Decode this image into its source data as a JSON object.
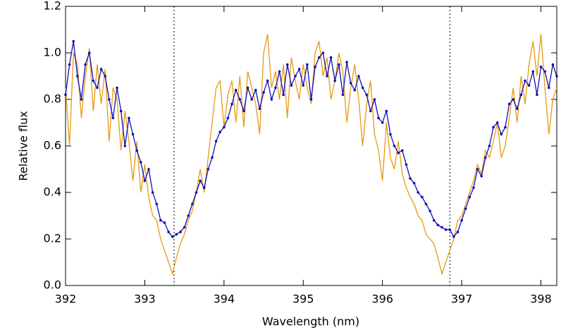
{
  "chart_data": {
    "type": "line",
    "xlabel": "Wavelength (nm)",
    "ylabel": "Relative flux",
    "x": [
      392.0,
      392.05,
      392.1,
      392.15,
      392.2,
      392.25,
      392.3,
      392.35,
      392.4,
      392.45,
      392.5,
      392.55,
      392.6,
      392.65,
      392.7,
      392.75,
      392.8,
      392.85,
      392.9,
      392.95,
      393.0,
      393.05,
      393.1,
      393.15,
      393.2,
      393.25,
      393.3,
      393.35,
      393.4,
      393.45,
      393.5,
      393.55,
      393.6,
      393.65,
      393.7,
      393.75,
      393.8,
      393.85,
      393.9,
      393.95,
      394.0,
      394.05,
      394.1,
      394.15,
      394.2,
      394.25,
      394.3,
      394.35,
      394.4,
      394.45,
      394.5,
      394.55,
      394.6,
      394.65,
      394.7,
      394.75,
      394.8,
      394.85,
      394.9,
      394.95,
      395.0,
      395.05,
      395.1,
      395.15,
      395.2,
      395.25,
      395.3,
      395.35,
      395.4,
      395.45,
      395.5,
      395.55,
      395.6,
      395.65,
      395.7,
      395.75,
      395.8,
      395.85,
      395.9,
      395.95,
      396.0,
      396.05,
      396.1,
      396.15,
      396.2,
      396.25,
      396.3,
      396.35,
      396.4,
      396.45,
      396.5,
      396.55,
      396.6,
      396.65,
      396.7,
      396.75,
      396.8,
      396.85,
      396.9,
      396.95,
      397.0,
      397.05,
      397.1,
      397.15,
      397.2,
      397.25,
      397.3,
      397.35,
      397.4,
      397.45,
      397.5,
      397.55,
      397.6,
      397.65,
      397.7,
      397.75,
      397.8,
      397.85,
      397.9,
      397.95,
      398.0,
      398.05,
      398.1,
      398.15,
      398.2
    ],
    "series": [
      {
        "color": "#e89a10",
        "markers": false,
        "values": [
          0.85,
          0.6,
          1.0,
          0.95,
          0.72,
          0.9,
          1.02,
          0.75,
          0.95,
          0.78,
          0.93,
          0.62,
          0.85,
          0.8,
          0.58,
          0.75,
          0.62,
          0.45,
          0.62,
          0.4,
          0.52,
          0.38,
          0.3,
          0.28,
          0.2,
          0.15,
          0.1,
          0.05,
          0.12,
          0.18,
          0.22,
          0.28,
          0.32,
          0.4,
          0.5,
          0.4,
          0.55,
          0.7,
          0.85,
          0.88,
          0.68,
          0.82,
          0.88,
          0.7,
          0.9,
          0.68,
          0.92,
          0.85,
          0.78,
          0.65,
          1.0,
          1.08,
          0.85,
          0.92,
          0.8,
          0.95,
          0.72,
          0.98,
          0.88,
          0.8,
          0.95,
          0.85,
          0.78,
          1.0,
          1.05,
          0.9,
          0.98,
          0.8,
          0.88,
          1.0,
          0.92,
          0.7,
          0.85,
          0.95,
          0.8,
          0.6,
          0.78,
          0.88,
          0.65,
          0.58,
          0.45,
          0.7,
          0.55,
          0.5,
          0.62,
          0.48,
          0.42,
          0.38,
          0.35,
          0.3,
          0.28,
          0.22,
          0.2,
          0.18,
          0.12,
          0.05,
          0.1,
          0.15,
          0.2,
          0.28,
          0.3,
          0.35,
          0.4,
          0.45,
          0.52,
          0.48,
          0.58,
          0.55,
          0.62,
          0.7,
          0.55,
          0.6,
          0.72,
          0.85,
          0.7,
          0.9,
          0.78,
          0.95,
          1.05,
          0.9,
          1.08,
          0.85,
          0.65,
          0.8,
          0.85
        ]
      },
      {
        "color": "#1010b0",
        "markers": true,
        "values": [
          0.82,
          0.95,
          1.05,
          0.9,
          0.8,
          0.95,
          1.0,
          0.88,
          0.85,
          0.93,
          0.9,
          0.8,
          0.72,
          0.85,
          0.75,
          0.6,
          0.72,
          0.65,
          0.58,
          0.53,
          0.45,
          0.5,
          0.4,
          0.35,
          0.28,
          0.27,
          0.23,
          0.21,
          0.22,
          0.23,
          0.25,
          0.3,
          0.35,
          0.4,
          0.45,
          0.42,
          0.5,
          0.55,
          0.62,
          0.66,
          0.68,
          0.72,
          0.78,
          0.84,
          0.8,
          0.75,
          0.85,
          0.8,
          0.84,
          0.76,
          0.83,
          0.88,
          0.8,
          0.85,
          0.92,
          0.82,
          0.95,
          0.86,
          0.9,
          0.93,
          0.86,
          0.95,
          0.8,
          0.94,
          0.98,
          1.0,
          0.9,
          0.98,
          0.88,
          0.95,
          0.82,
          0.96,
          0.87,
          0.84,
          0.9,
          0.85,
          0.82,
          0.75,
          0.8,
          0.72,
          0.7,
          0.75,
          0.65,
          0.6,
          0.57,
          0.58,
          0.52,
          0.46,
          0.44,
          0.4,
          0.38,
          0.35,
          0.32,
          0.28,
          0.26,
          0.25,
          0.24,
          0.24,
          0.21,
          0.23,
          0.28,
          0.33,
          0.38,
          0.42,
          0.5,
          0.47,
          0.55,
          0.6,
          0.68,
          0.7,
          0.65,
          0.68,
          0.78,
          0.8,
          0.76,
          0.82,
          0.88,
          0.86,
          0.92,
          0.82,
          0.94,
          0.92,
          0.85,
          0.95,
          0.9
        ]
      }
    ],
    "vlines": [
      393.37,
      396.85
    ],
    "xlim": [
      392,
      398.2
    ],
    "xticks": [
      392,
      393,
      394,
      395,
      396,
      397,
      398
    ],
    "ylim": [
      0,
      1.2
    ],
    "yticks": [
      {
        "value": 0,
        "label": "0.0"
      },
      0.2,
      0.4,
      0.6,
      0.8,
      {
        "value": 1,
        "label": "1.0"
      },
      1.2
    ],
    "grid": false
  }
}
